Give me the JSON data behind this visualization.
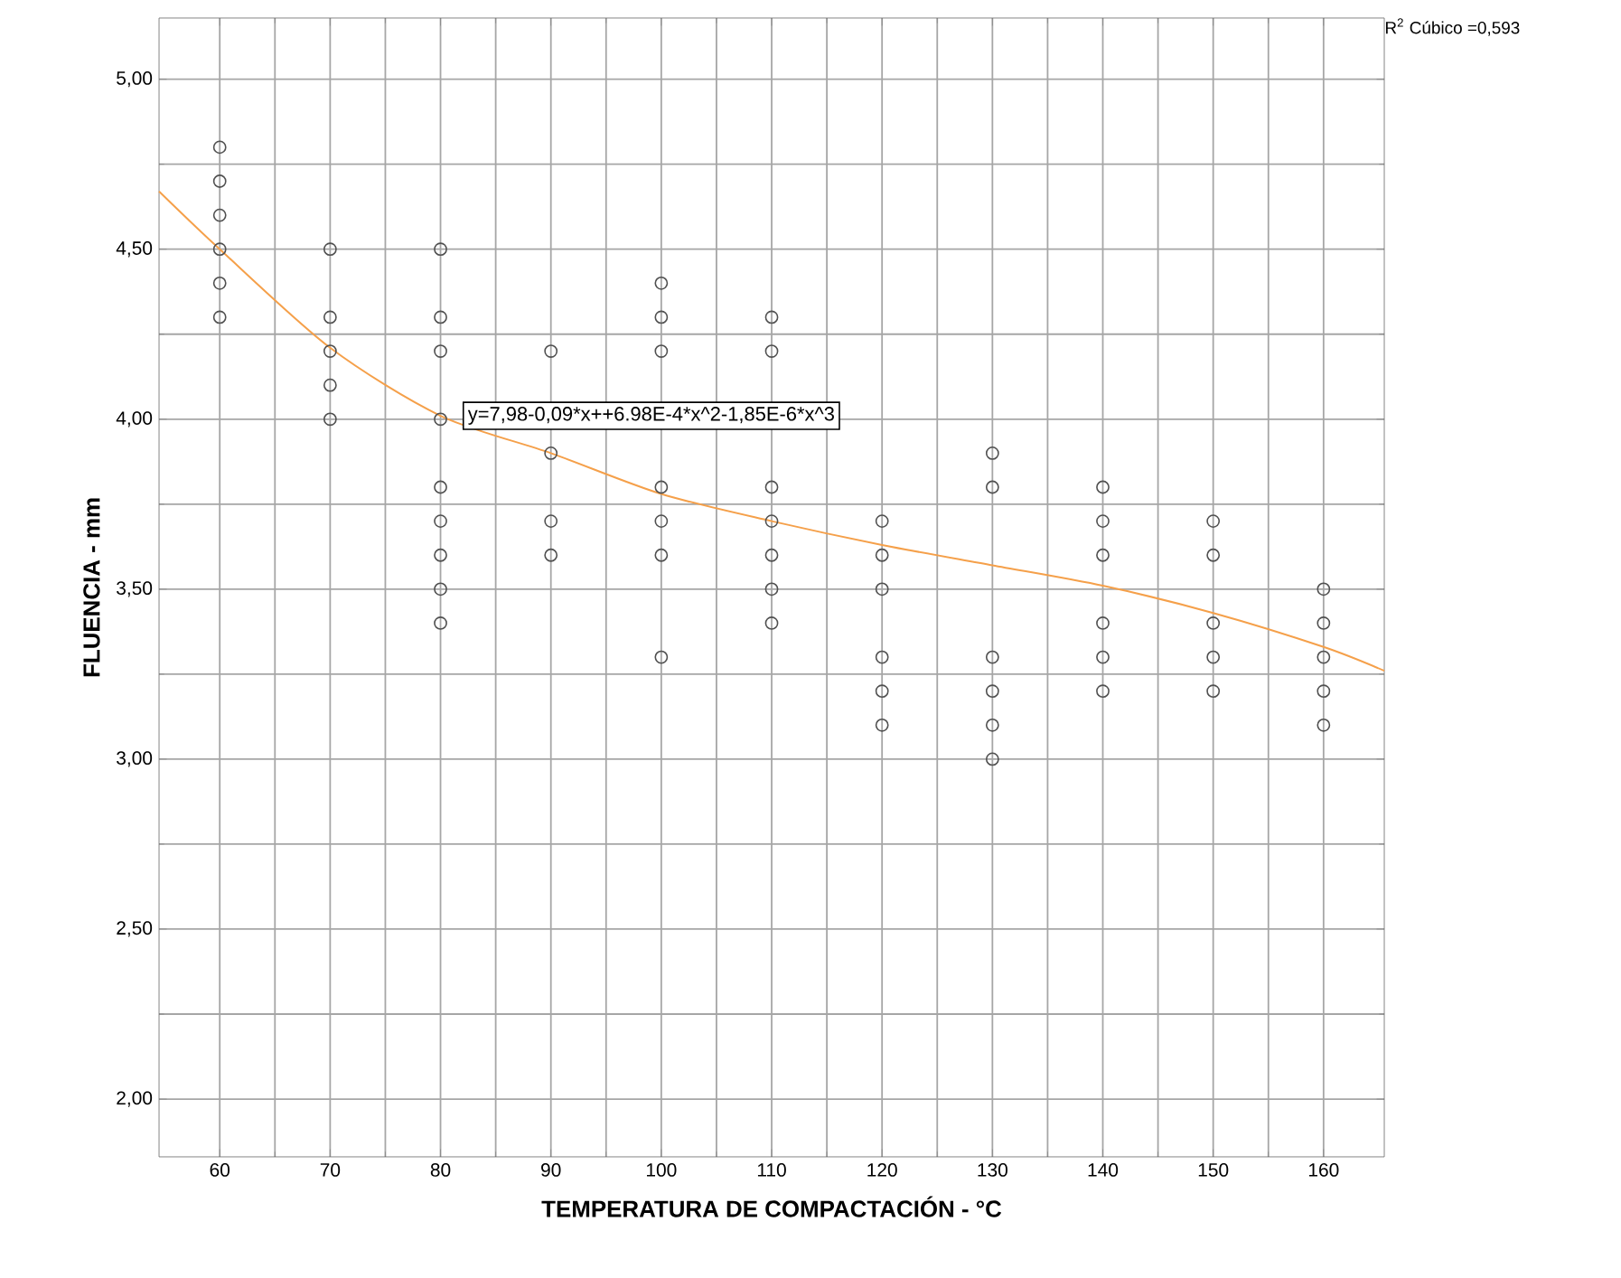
{
  "chart_data": {
    "type": "scatter",
    "xlabel": "TEMPERATURA DE COMPACTACIÓN - °C",
    "ylabel": "FLUENCIA - mm",
    "xlim": [
      54.5,
      165.5
    ],
    "ylim": [
      1.83,
      5.18
    ],
    "xticks": [
      60,
      70,
      80,
      90,
      100,
      110,
      120,
      130,
      140,
      150,
      160
    ],
    "yticks": [
      {
        "value": 2,
        "label": "2,00"
      },
      {
        "value": 2.5,
        "label": "2,50"
      },
      {
        "value": 3,
        "label": "3,00"
      },
      {
        "value": 3.5,
        "label": "3,50"
      },
      {
        "value": 4,
        "label": "4,00"
      },
      {
        "value": 4.5,
        "label": "4,50"
      },
      {
        "value": 5,
        "label": "5,00"
      }
    ],
    "grid": true,
    "series": [
      {
        "marker": "circle",
        "color": "#505050",
        "x": [
          60,
          60,
          60,
          60,
          60,
          60,
          70,
          70,
          70,
          70,
          70,
          80,
          80,
          80,
          80,
          80,
          80,
          80,
          80,
          80,
          90,
          90,
          90,
          90,
          100,
          100,
          100,
          100,
          100,
          100,
          100,
          110,
          110,
          110,
          110,
          110,
          110,
          110,
          120,
          120,
          120,
          120,
          120,
          120,
          130,
          130,
          130,
          130,
          130,
          130,
          140,
          140,
          140,
          140,
          140,
          140,
          150,
          150,
          150,
          150,
          150,
          160,
          160,
          160,
          160,
          160
        ],
        "values": [
          4.8,
          4.7,
          4.6,
          4.5,
          4.4,
          4.3,
          4.5,
          4.3,
          4.2,
          4.1,
          4.0,
          4.5,
          4.3,
          4.2,
          4.0,
          3.8,
          3.7,
          3.6,
          3.5,
          3.4,
          4.2,
          3.9,
          3.7,
          3.6,
          4.4,
          4.3,
          4.2,
          3.8,
          3.7,
          3.6,
          3.3,
          4.3,
          4.2,
          3.8,
          3.7,
          3.6,
          3.5,
          3.4,
          3.7,
          3.6,
          3.5,
          3.3,
          3.2,
          3.1,
          3.9,
          3.8,
          3.3,
          3.2,
          3.1,
          3.0,
          3.8,
          3.7,
          3.6,
          3.4,
          3.3,
          3.2,
          3.7,
          3.6,
          3.4,
          3.3,
          3.2,
          3.5,
          3.4,
          3.3,
          3.2,
          3.1
        ]
      },
      {
        "type": "line",
        "marker": "none",
        "color": "#f5a04a",
        "x": [
          54.5,
          60,
          70,
          80,
          90,
          100,
          110,
          120,
          130,
          140,
          150,
          160,
          165.5
        ],
        "values": [
          4.67,
          4.5,
          4.21,
          4.01,
          3.9,
          3.78,
          3.7,
          3.63,
          3.57,
          3.51,
          3.43,
          3.33,
          3.26
        ]
      }
    ],
    "annotations": [
      "y=7,98-0,09*x++6.98E-4*x^2-1,85E-6*x^3",
      "R$^{2}$ Cúbico =0,593"
    ]
  }
}
